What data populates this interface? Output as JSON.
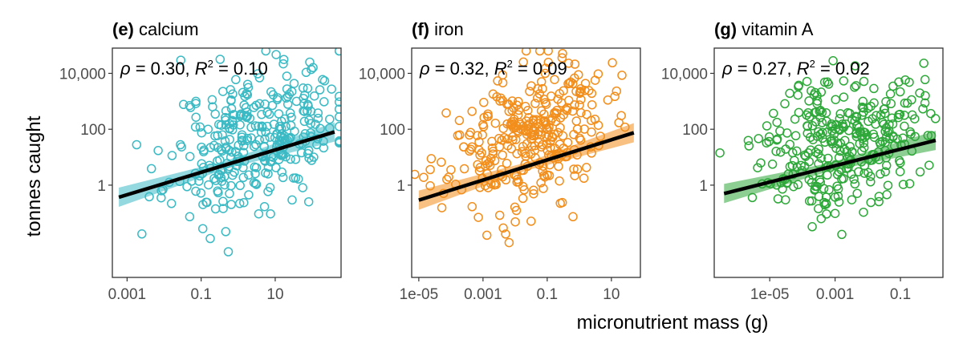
{
  "figure": {
    "y_axis_title": "tonnes caught",
    "x_axis_title": "micronutrient mass (g)"
  },
  "chart_data": [
    {
      "type": "scatter",
      "panel_tag": "(e)",
      "title": "calcium",
      "color": "#3BBAC4",
      "stat_text": {
        "rho": "0.30",
        "r2": "0.10"
      },
      "xscale": "log10",
      "yscale": "log10",
      "xlim": [
        0.0004,
        600
      ],
      "ylim": [
        0.0005,
        80000
      ],
      "xticks": [
        0.001,
        0.1,
        10
      ],
      "xtick_labels": [
        "0.001",
        "0.1",
        "10"
      ],
      "yticks": [
        1,
        100,
        10000
      ],
      "ytick_labels": [
        "1",
        "100",
        "10,000"
      ],
      "trend": {
        "x": [
          0.0006,
          400
        ],
        "y": [
          0.37,
          80
        ]
      },
      "grid": false,
      "n_points": 330,
      "seed": 11,
      "point_cloud": {
        "x_center_log": 0.5,
        "x_sd_log": 1.15,
        "y_center_log": 1.7,
        "y_sd_log": 1.25,
        "slope": 0.42
      }
    },
    {
      "type": "scatter",
      "panel_tag": "(f)",
      "title": "iron",
      "color": "#F28E1C",
      "stat_text": {
        "rho": "0.32",
        "r2": "0.09"
      },
      "xscale": "log10",
      "yscale": "log10",
      "xlim": [
        6e-06,
        80
      ],
      "ylim": [
        0.0005,
        80000
      ],
      "xticks": [
        1e-05,
        0.001,
        0.1,
        10
      ],
      "xtick_labels": [
        "1e-05",
        "0.001",
        "0.1",
        "10"
      ],
      "yticks": [
        1,
        100,
        10000
      ],
      "ytick_labels": [
        "1",
        "100",
        "10,000"
      ],
      "trend": {
        "x": [
          1e-05,
          50
        ],
        "y": [
          0.29,
          75
        ]
      },
      "grid": false,
      "n_points": 330,
      "seed": 23,
      "point_cloud": {
        "x_center_log": -1.6,
        "x_sd_log": 1.2,
        "y_center_log": 1.7,
        "y_sd_log": 1.2,
        "slope": 0.34
      }
    },
    {
      "type": "scatter",
      "panel_tag": "(g)",
      "title": "vitamin A",
      "color": "#2FA83A",
      "stat_text": {
        "rho": "0.27",
        "r2": "0.02"
      },
      "xscale": "log10",
      "yscale": "log10",
      "xlim": [
        2e-07,
        2
      ],
      "ylim": [
        0.0005,
        80000
      ],
      "xticks": [
        1e-05,
        0.001,
        0.1
      ],
      "xtick_labels": [
        "1e-05",
        "0.001",
        "0.1"
      ],
      "yticks": [
        1,
        100,
        10000
      ],
      "ytick_labels": [
        "1",
        "100",
        "10,000"
      ],
      "trend": {
        "x": [
          4e-07,
          1.2
        ],
        "y": [
          0.5,
          40
        ]
      },
      "grid": false,
      "n_points": 330,
      "seed": 37,
      "point_cloud": {
        "x_center_log": -2.8,
        "x_sd_log": 1.2,
        "y_center_log": 1.6,
        "y_sd_log": 1.2,
        "slope": 0.25
      }
    }
  ]
}
